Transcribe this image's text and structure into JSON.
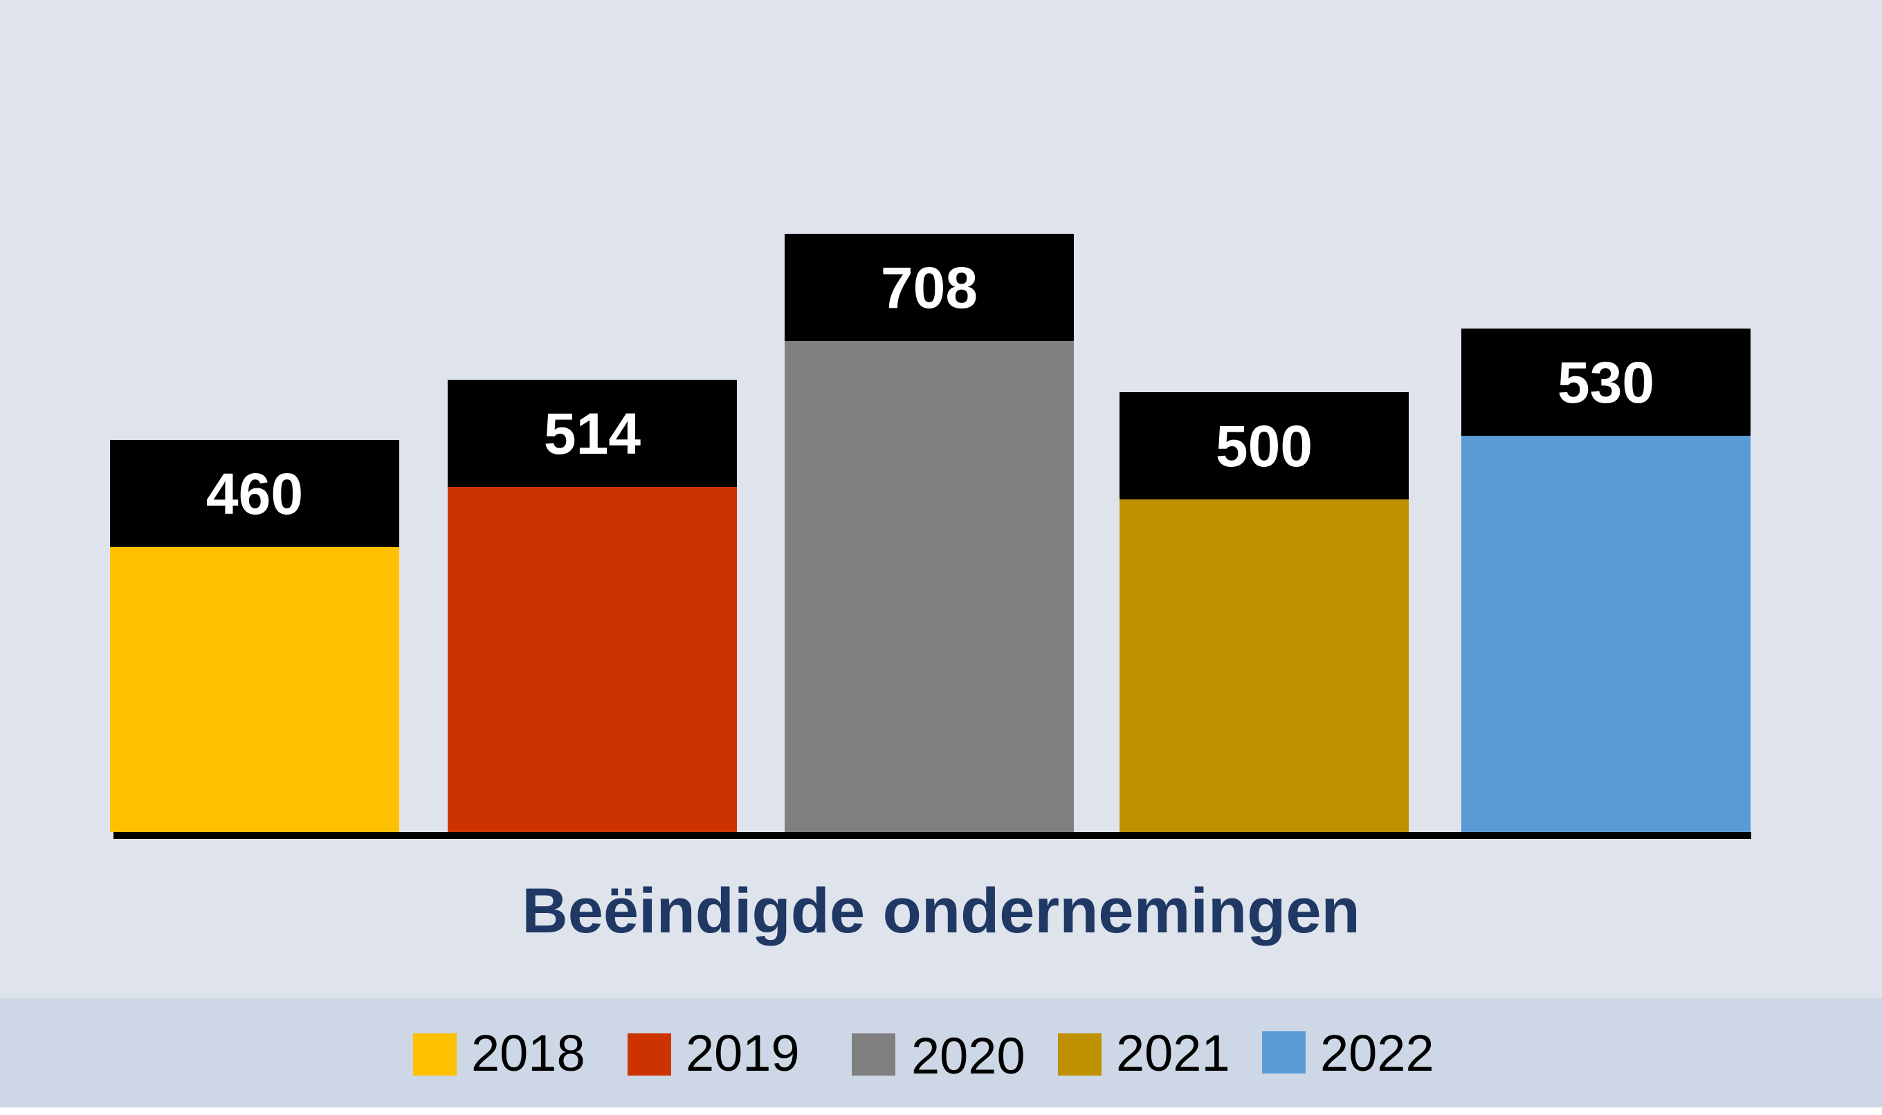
{
  "chart_data": {
    "type": "bar",
    "title": "Beëindigde ondernemingen",
    "xlabel": "",
    "ylabel": "",
    "grid": false,
    "legend_position": "bottom",
    "categories": [
      "2018",
      "2019",
      "2020",
      "2021",
      "2022"
    ],
    "values": [
      460,
      514,
      708,
      500,
      530
    ],
    "value_labels": [
      "460",
      "514",
      "708",
      "500",
      "530"
    ],
    "colors": [
      "#ffc000",
      "#cc3300",
      "#808080",
      "#bf9000",
      "#5b9bd5"
    ],
    "label_box_color": "#000000",
    "title_color": "#1f3864",
    "legend": [
      {
        "label": "2018",
        "color": "#ffc000"
      },
      {
        "label": "2019",
        "color": "#cc3300"
      },
      {
        "label": "2020",
        "color": "#808080"
      },
      {
        "label": "2021",
        "color": "#bf9000"
      },
      {
        "label": "2022",
        "color": "#5b9bd5"
      }
    ]
  }
}
